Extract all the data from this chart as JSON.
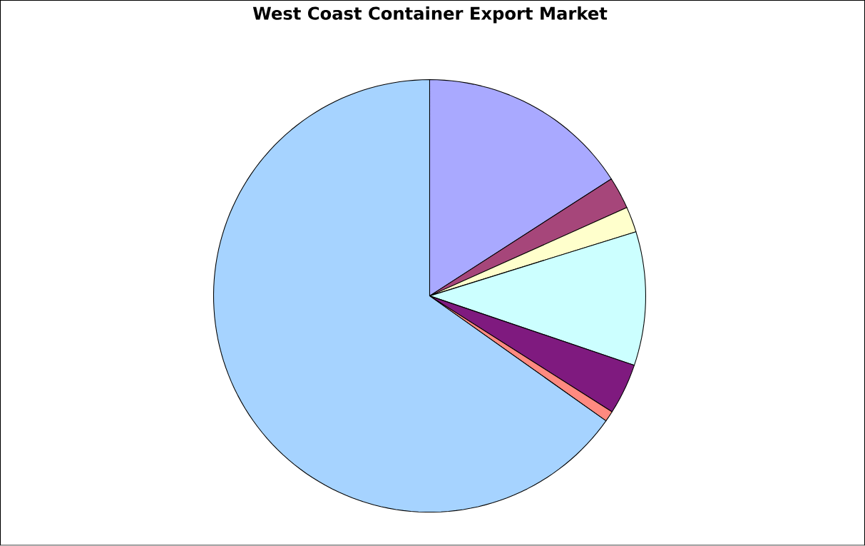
{
  "chart_data": {
    "type": "pie",
    "title": "West Coast Container Export Market",
    "categories": [
      null,
      null,
      null,
      null,
      null,
      null,
      null
    ],
    "values": [
      15.9,
      2.4,
      1.9,
      10.0,
      3.8,
      0.8,
      65.2
    ],
    "colors": [
      "#a9a9ff",
      "#a6467a",
      "#ffffcc",
      "#ccffff",
      "#7f1a7f",
      "#ff8a80",
      "#a6d3ff"
    ]
  }
}
